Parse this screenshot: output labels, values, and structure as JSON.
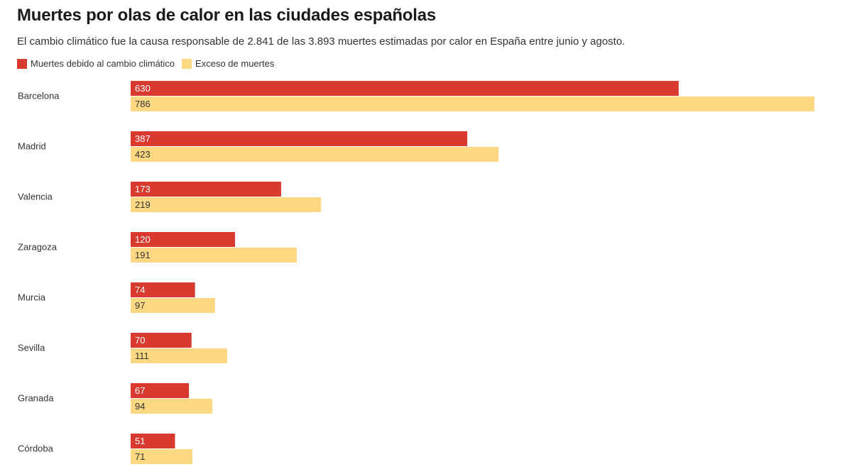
{
  "chart_data": {
    "type": "bar",
    "orientation": "horizontal",
    "title": "Muertes por olas de calor en las ciudades españolas",
    "subtitle": "El cambio climático fue la causa responsable de 2.841 de las 3.893 muertes estimadas por calor en España entre junio y agosto.",
    "categories": [
      "Barcelona",
      "Madrid",
      "Valencia",
      "Zaragoza",
      "Murcia",
      "Sevilla",
      "Granada",
      "Córdoba"
    ],
    "series": [
      {
        "name": "Muertes debido al cambio climático",
        "color": "#d93a30",
        "label_color": "#ffffff",
        "values": [
          630,
          387,
          173,
          120,
          74,
          70,
          67,
          51
        ]
      },
      {
        "name": "Exceso de muertes",
        "color": "#fdd882",
        "label_color": "#333333",
        "values": [
          786,
          423,
          219,
          191,
          97,
          111,
          94,
          71
        ]
      }
    ],
    "xlim": [
      0,
      786
    ],
    "legend": "top-left",
    "grid": false
  }
}
